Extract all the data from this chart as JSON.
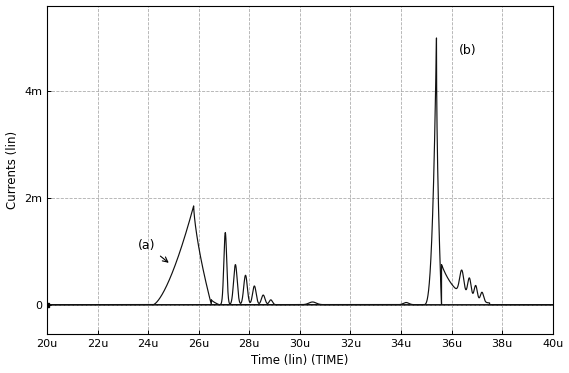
{
  "xlim": [
    2e-05,
    4e-05
  ],
  "ylim": [
    -0.00055,
    0.0056
  ],
  "yticks": [
    0,
    0.002,
    0.004
  ],
  "ytick_labels": [
    "0",
    "2m",
    "4m"
  ],
  "xticks": [
    2e-05,
    2.2e-05,
    2.4e-05,
    2.6e-05,
    2.8e-05,
    3e-05,
    3.2e-05,
    3.4e-05,
    3.6e-05,
    3.8e-05,
    4e-05
  ],
  "xtick_labels": [
    "20u",
    "22u",
    "24u",
    "26u",
    "28u",
    "30u",
    "32u",
    "34u",
    "36u",
    "38u",
    "40u"
  ],
  "xlabel": "Time (lin) (TIME)",
  "ylabel": "Currents (lin)",
  "background_color": "#ffffff",
  "plot_bg_color": "#ffffff",
  "line_color": "#111111",
  "grid_color": "#999999",
  "annotation_a_text": "(a)",
  "annotation_b_text": "(b)"
}
